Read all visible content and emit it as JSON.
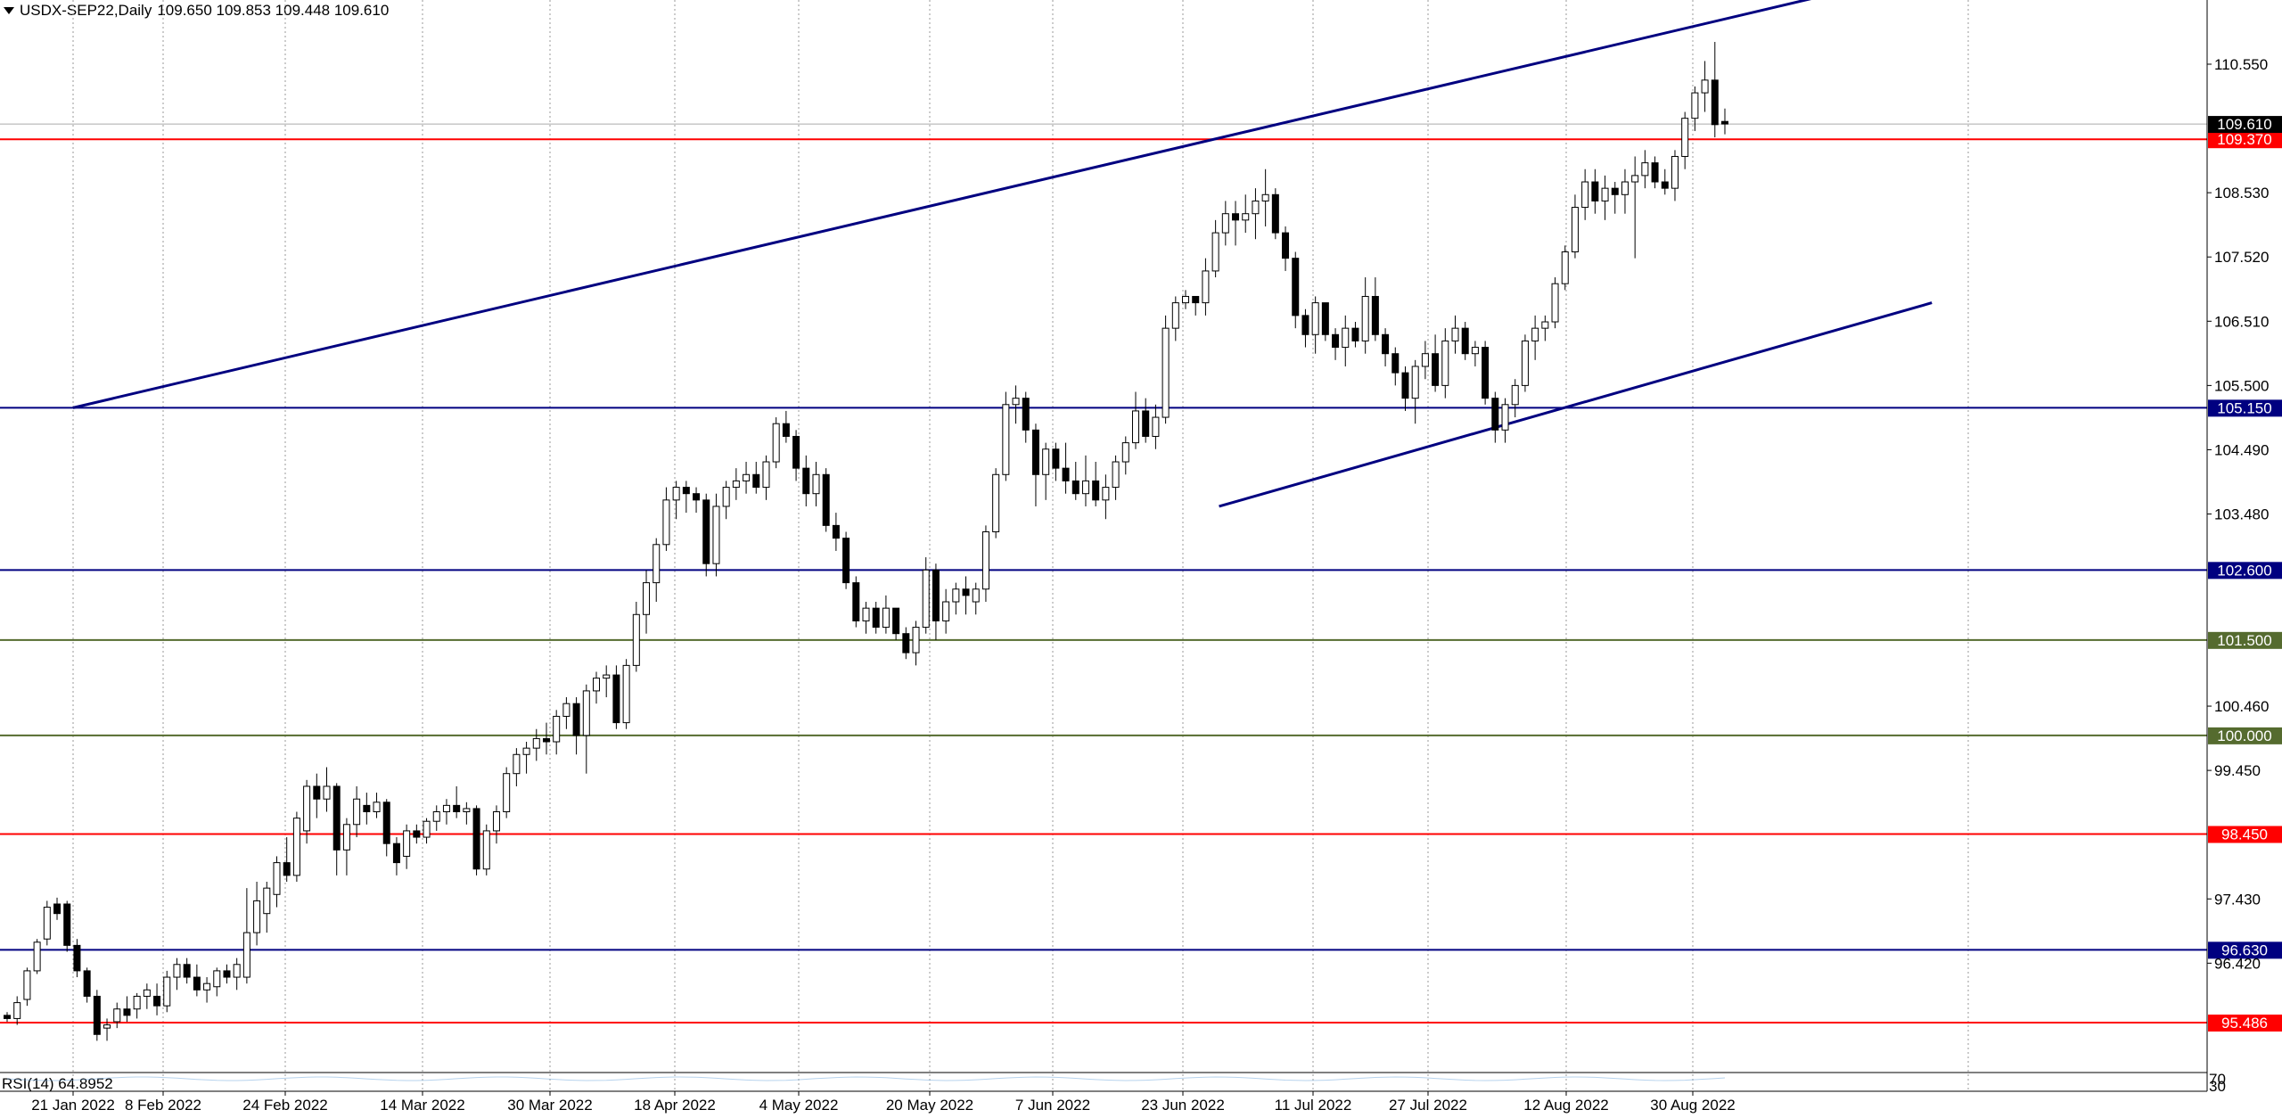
{
  "header": {
    "symbol": "USDX-SEP22,Daily",
    "ohlc": "109.650 109.853 109.448 109.610"
  },
  "chart_data": {
    "type": "candlestick",
    "symbol": "USDX-SEP22",
    "timeframe": "Daily",
    "ohlc_last": {
      "open": 109.65,
      "high": 109.853,
      "low": 109.448,
      "close": 109.61
    },
    "price_axis_ticks": [
      "110.550",
      "108.530",
      "107.520",
      "106.510",
      "105.500",
      "104.490",
      "103.480",
      "100.460",
      "99.450",
      "97.430",
      "96.420"
    ],
    "date_axis_ticks": [
      "21 Jan 2022",
      "8 Feb 2022",
      "24 Feb 2022",
      "14 Mar 2022",
      "30 Mar 2022",
      "18 Apr 2022",
      "4 May 2022",
      "20 May 2022",
      "7 Jun 2022",
      "23 Jun 2022",
      "11 Jul 2022",
      "27 Jul 2022",
      "12 Aug 2022",
      "30 Aug 2022"
    ],
    "current_price": {
      "value": "109.610",
      "color": "#000000"
    },
    "horizontal_levels": [
      {
        "value": "109.370",
        "color": "#ff0000"
      },
      {
        "value": "105.150",
        "color": "#000080"
      },
      {
        "value": "102.600",
        "color": "#000080"
      },
      {
        "value": "101.500",
        "color": "#556b2f"
      },
      {
        "value": "100.000",
        "color": "#556b2f"
      },
      {
        "value": "98.450",
        "color": "#ff0000"
      },
      {
        "value": "96.630",
        "color": "#000080"
      },
      {
        "value": "95.486",
        "color": "#ff0000"
      }
    ],
    "trendlines": [
      {
        "from": [
          "21 Jan 2022",
          105.15
        ],
        "to": [
          "2 Oct 2022",
          112.0
        ],
        "color": "#000080"
      },
      {
        "from": [
          "28 Jun 2022",
          103.6
        ],
        "to": [
          "3 Oct 2022",
          106.8
        ],
        "color": "#000080"
      }
    ],
    "candles": [
      [
        95.6,
        95.65,
        95.5,
        95.55
      ],
      [
        95.55,
        95.9,
        95.45,
        95.8
      ],
      [
        95.85,
        96.35,
        95.75,
        96.3
      ],
      [
        96.3,
        96.8,
        96.25,
        96.75
      ],
      [
        96.8,
        97.4,
        96.7,
        97.3
      ],
      [
        97.35,
        97.45,
        97.1,
        97.2
      ],
      [
        97.35,
        97.4,
        96.6,
        96.7
      ],
      [
        96.7,
        96.8,
        96.2,
        96.3
      ],
      [
        96.3,
        96.35,
        95.8,
        95.9
      ],
      [
        95.9,
        96.0,
        95.2,
        95.3
      ],
      [
        95.4,
        95.55,
        95.2,
        95.45
      ],
      [
        95.5,
        95.8,
        95.4,
        95.7
      ],
      [
        95.7,
        95.9,
        95.5,
        95.6
      ],
      [
        95.7,
        95.95,
        95.55,
        95.9
      ],
      [
        95.9,
        96.1,
        95.7,
        96.0
      ],
      [
        95.9,
        96.1,
        95.6,
        95.75
      ],
      [
        95.75,
        96.3,
        95.65,
        96.2
      ],
      [
        96.2,
        96.5,
        96.0,
        96.4
      ],
      [
        96.4,
        96.5,
        96.1,
        96.2
      ],
      [
        96.2,
        96.4,
        95.9,
        96.0
      ],
      [
        96.0,
        96.2,
        95.8,
        96.1
      ],
      [
        96.05,
        96.35,
        95.9,
        96.3
      ],
      [
        96.3,
        96.4,
        96.1,
        96.2
      ],
      [
        96.2,
        96.5,
        96.0,
        96.4
      ],
      [
        96.2,
        97.6,
        96.1,
        96.9
      ],
      [
        96.9,
        97.7,
        96.7,
        97.4
      ],
      [
        97.2,
        97.7,
        96.9,
        97.6
      ],
      [
        97.5,
        98.1,
        97.3,
        98.0
      ],
      [
        98.0,
        98.4,
        97.7,
        97.8
      ],
      [
        97.8,
        98.8,
        97.7,
        98.7
      ],
      [
        98.5,
        99.3,
        98.3,
        99.2
      ],
      [
        99.2,
        99.4,
        98.7,
        99.0
      ],
      [
        99.0,
        99.5,
        98.8,
        99.2
      ],
      [
        99.2,
        99.25,
        97.8,
        98.2
      ],
      [
        98.2,
        98.7,
        97.8,
        98.6
      ],
      [
        98.6,
        99.2,
        98.4,
        99.0
      ],
      [
        98.9,
        99.1,
        98.6,
        98.8
      ],
      [
        98.8,
        99.1,
        98.7,
        98.95
      ],
      [
        98.95,
        99.0,
        98.1,
        98.3
      ],
      [
        98.3,
        98.4,
        97.8,
        98.0
      ],
      [
        98.1,
        98.6,
        97.9,
        98.5
      ],
      [
        98.5,
        98.6,
        98.3,
        98.4
      ],
      [
        98.4,
        98.7,
        98.3,
        98.65
      ],
      [
        98.65,
        98.9,
        98.5,
        98.8
      ],
      [
        98.8,
        99.0,
        98.6,
        98.9
      ],
      [
        98.9,
        99.2,
        98.7,
        98.8
      ],
      [
        98.8,
        98.95,
        98.6,
        98.85
      ],
      [
        98.85,
        98.9,
        97.8,
        97.9
      ],
      [
        97.9,
        98.6,
        97.8,
        98.5
      ],
      [
        98.5,
        98.9,
        98.3,
        98.8
      ],
      [
        98.8,
        99.5,
        98.7,
        99.4
      ],
      [
        99.4,
        99.8,
        99.2,
        99.7
      ],
      [
        99.7,
        99.9,
        99.4,
        99.8
      ],
      [
        99.8,
        100.1,
        99.6,
        99.95
      ],
      [
        99.95,
        100.2,
        99.7,
        99.9
      ],
      [
        99.9,
        100.4,
        99.7,
        100.3
      ],
      [
        100.3,
        100.6,
        100.1,
        100.5
      ],
      [
        100.5,
        100.6,
        99.7,
        100.0
      ],
      [
        100.0,
        100.8,
        99.4,
        100.7
      ],
      [
        100.7,
        101.0,
        100.5,
        100.9
      ],
      [
        100.9,
        101.1,
        100.6,
        100.95
      ],
      [
        100.95,
        101.1,
        100.1,
        100.2
      ],
      [
        100.2,
        101.2,
        100.1,
        101.1
      ],
      [
        101.1,
        102.1,
        101.0,
        101.9
      ],
      [
        101.9,
        102.6,
        101.6,
        102.4
      ],
      [
        102.4,
        103.1,
        102.1,
        103.0
      ],
      [
        103.0,
        103.9,
        102.9,
        103.7
      ],
      [
        103.7,
        104.0,
        103.4,
        103.9
      ],
      [
        103.9,
        104.0,
        103.5,
        103.8
      ],
      [
        103.8,
        103.9,
        103.5,
        103.7
      ],
      [
        103.7,
        103.8,
        102.5,
        102.7
      ],
      [
        102.7,
        103.8,
        102.5,
        103.6
      ],
      [
        103.6,
        104.0,
        103.4,
        103.9
      ],
      [
        103.9,
        104.2,
        103.7,
        104.0
      ],
      [
        104.0,
        104.3,
        103.8,
        104.1
      ],
      [
        104.1,
        104.3,
        103.8,
        103.9
      ],
      [
        103.9,
        104.4,
        103.7,
        104.3
      ],
      [
        104.3,
        105.0,
        104.2,
        104.9
      ],
      [
        104.9,
        105.1,
        104.6,
        104.7
      ],
      [
        104.7,
        104.8,
        104.0,
        104.2
      ],
      [
        104.2,
        104.4,
        103.6,
        103.8
      ],
      [
        103.8,
        104.3,
        103.6,
        104.1
      ],
      [
        104.1,
        104.2,
        103.2,
        103.3
      ],
      [
        103.3,
        103.5,
        102.9,
        103.1
      ],
      [
        103.1,
        103.2,
        102.3,
        102.4
      ],
      [
        102.4,
        102.5,
        101.7,
        101.8
      ],
      [
        101.8,
        102.1,
        101.6,
        102.0
      ],
      [
        102.0,
        102.1,
        101.6,
        101.7
      ],
      [
        101.7,
        102.2,
        101.6,
        102.0
      ],
      [
        102.0,
        102.0,
        101.5,
        101.6
      ],
      [
        101.6,
        101.7,
        101.2,
        101.3
      ],
      [
        101.3,
        101.8,
        101.1,
        101.7
      ],
      [
        101.7,
        102.8,
        101.6,
        102.6
      ],
      [
        102.6,
        102.7,
        101.5,
        101.8
      ],
      [
        101.8,
        102.3,
        101.6,
        102.1
      ],
      [
        102.1,
        102.4,
        101.9,
        102.3
      ],
      [
        102.3,
        102.5,
        101.9,
        102.2
      ],
      [
        102.1,
        102.4,
        101.9,
        102.3
      ],
      [
        102.3,
        103.3,
        102.1,
        103.2
      ],
      [
        103.2,
        104.2,
        103.1,
        104.1
      ],
      [
        104.1,
        105.4,
        104.0,
        105.2
      ],
      [
        105.2,
        105.5,
        104.9,
        105.3
      ],
      [
        105.3,
        105.4,
        104.6,
        104.8
      ],
      [
        104.8,
        104.9,
        103.6,
        104.1
      ],
      [
        104.1,
        104.6,
        103.7,
        104.5
      ],
      [
        104.5,
        104.6,
        104.0,
        104.2
      ],
      [
        104.2,
        104.6,
        103.8,
        104.0
      ],
      [
        104.0,
        104.3,
        103.7,
        103.8
      ],
      [
        103.8,
        104.4,
        103.6,
        104.0
      ],
      [
        104.0,
        104.3,
        103.6,
        103.7
      ],
      [
        103.7,
        104.1,
        103.4,
        103.9
      ],
      [
        103.9,
        104.4,
        103.7,
        104.3
      ],
      [
        104.3,
        104.7,
        104.1,
        104.6
      ],
      [
        104.6,
        105.4,
        104.5,
        105.1
      ],
      [
        105.1,
        105.3,
        104.6,
        104.7
      ],
      [
        104.7,
        105.2,
        104.5,
        105.0
      ],
      [
        105.0,
        106.6,
        104.9,
        106.4
      ],
      [
        106.4,
        106.9,
        106.2,
        106.8
      ],
      [
        106.8,
        107.0,
        106.7,
        106.9
      ],
      [
        106.9,
        106.9,
        106.6,
        106.8
      ],
      [
        106.8,
        107.5,
        106.6,
        107.3
      ],
      [
        107.3,
        108.1,
        107.2,
        107.9
      ],
      [
        107.9,
        108.4,
        107.7,
        108.2
      ],
      [
        108.2,
        108.4,
        107.7,
        108.1
      ],
      [
        108.1,
        108.5,
        107.9,
        108.2
      ],
      [
        108.2,
        108.6,
        107.8,
        108.4
      ],
      [
        108.4,
        108.9,
        108.0,
        108.5
      ],
      [
        108.5,
        108.6,
        107.8,
        107.9
      ],
      [
        107.9,
        108.0,
        107.3,
        107.5
      ],
      [
        107.5,
        107.6,
        106.4,
        106.6
      ],
      [
        106.6,
        106.7,
        106.1,
        106.3
      ],
      [
        106.3,
        106.9,
        106.0,
        106.8
      ],
      [
        106.8,
        106.8,
        106.2,
        106.3
      ],
      [
        106.3,
        106.4,
        105.9,
        106.1
      ],
      [
        106.1,
        106.6,
        105.8,
        106.4
      ],
      [
        106.4,
        106.5,
        106.1,
        106.2
      ],
      [
        106.2,
        107.2,
        106.0,
        106.9
      ],
      [
        106.9,
        107.2,
        106.2,
        106.3
      ],
      [
        106.3,
        106.4,
        105.8,
        106.0
      ],
      [
        106.0,
        106.1,
        105.5,
        105.7
      ],
      [
        105.7,
        105.8,
        105.1,
        105.3
      ],
      [
        105.3,
        105.9,
        104.9,
        105.8
      ],
      [
        105.8,
        106.2,
        105.6,
        106.0
      ],
      [
        106.0,
        106.3,
        105.4,
        105.5
      ],
      [
        105.5,
        106.4,
        105.3,
        106.2
      ],
      [
        106.2,
        106.6,
        106.0,
        106.4
      ],
      [
        106.4,
        106.5,
        105.9,
        106.0
      ],
      [
        106.0,
        106.2,
        105.8,
        106.1
      ],
      [
        106.1,
        106.2,
        105.2,
        105.3
      ],
      [
        105.3,
        105.4,
        104.6,
        104.8
      ],
      [
        104.8,
        105.3,
        104.6,
        105.2
      ],
      [
        105.2,
        105.6,
        105.0,
        105.5
      ],
      [
        105.5,
        106.3,
        105.4,
        106.2
      ],
      [
        106.2,
        106.6,
        105.9,
        106.4
      ],
      [
        106.4,
        106.6,
        106.2,
        106.5
      ],
      [
        106.5,
        107.2,
        106.4,
        107.1
      ],
      [
        107.1,
        107.7,
        107.0,
        107.6
      ],
      [
        107.6,
        108.5,
        107.5,
        108.3
      ],
      [
        108.3,
        108.9,
        108.1,
        108.7
      ],
      [
        108.7,
        108.9,
        108.2,
        108.4
      ],
      [
        108.4,
        108.8,
        108.1,
        108.6
      ],
      [
        108.6,
        108.7,
        108.2,
        108.5
      ],
      [
        108.5,
        108.9,
        108.2,
        108.7
      ],
      [
        108.7,
        109.1,
        107.5,
        108.8
      ],
      [
        108.8,
        109.2,
        108.6,
        109.0
      ],
      [
        109.0,
        109.1,
        108.6,
        108.7
      ],
      [
        108.7,
        108.9,
        108.5,
        108.6
      ],
      [
        108.6,
        109.2,
        108.4,
        109.1
      ],
      [
        109.1,
        109.8,
        108.9,
        109.7
      ],
      [
        109.7,
        110.2,
        109.5,
        110.1
      ],
      [
        110.1,
        110.6,
        109.8,
        110.3
      ],
      [
        110.3,
        110.9,
        109.4,
        109.6
      ],
      [
        109.65,
        109.853,
        109.448,
        109.61
      ]
    ],
    "rsi": {
      "label": "RSI(14) 64.8952",
      "period": 14,
      "value": 64.8952,
      "levels": [
        "70",
        "30"
      ]
    }
  }
}
